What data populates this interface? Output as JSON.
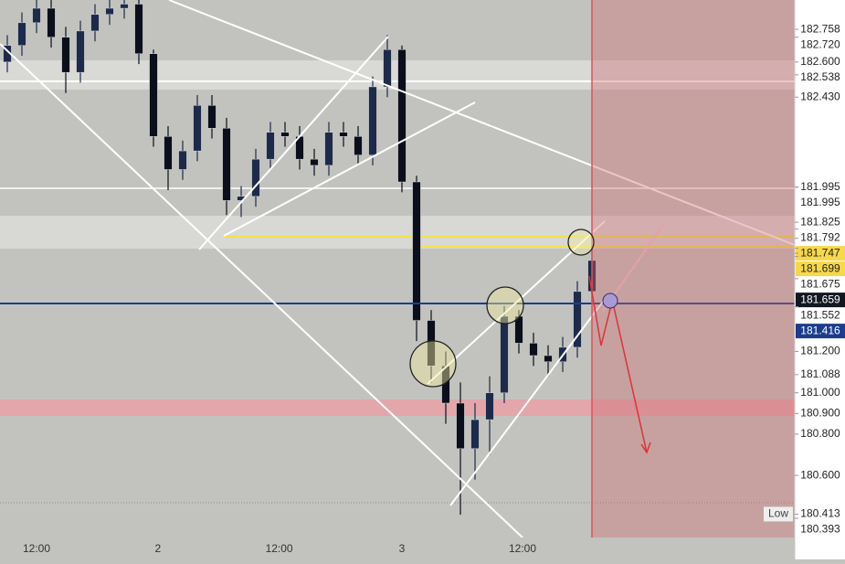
{
  "chart_data": {
    "type": "candlestick",
    "x": [
      0,
      1,
      2,
      3,
      4,
      5,
      6,
      7,
      8,
      9,
      10,
      11,
      12,
      13,
      14,
      15,
      16,
      17,
      18,
      19,
      20,
      21,
      22,
      23,
      24,
      25,
      26,
      27,
      28,
      29,
      30,
      31,
      32,
      33,
      34,
      35,
      36,
      37,
      38,
      39,
      40
    ],
    "open": [
      182.6,
      182.68,
      182.79,
      182.86,
      182.72,
      182.55,
      182.75,
      182.83,
      182.86,
      182.88,
      182.64,
      182.24,
      182.08,
      182.17,
      182.39,
      182.28,
      181.93,
      181.95,
      182.13,
      182.26,
      182.24,
      182.13,
      182.1,
      182.26,
      182.24,
      182.15,
      182.48,
      182.66,
      182.02,
      181.35,
      181.13,
      180.95,
      180.73,
      180.87,
      181.0,
      181.37,
      181.24,
      181.18,
      181.15,
      181.22,
      181.49
    ],
    "high": [
      182.73,
      182.84,
      182.91,
      182.91,
      182.77,
      182.8,
      182.88,
      182.91,
      182.93,
      182.9,
      182.66,
      182.29,
      182.22,
      182.44,
      182.44,
      182.33,
      182.0,
      182.18,
      182.31,
      182.31,
      182.29,
      182.18,
      182.31,
      182.31,
      182.29,
      182.53,
      182.73,
      182.68,
      182.05,
      181.4,
      181.2,
      181.05,
      180.95,
      181.08,
      181.42,
      181.4,
      181.29,
      181.23,
      181.27,
      181.54,
      181.7
    ],
    "low": [
      182.55,
      182.63,
      182.74,
      182.67,
      182.45,
      182.5,
      182.7,
      182.78,
      182.81,
      182.59,
      182.19,
      181.98,
      182.03,
      182.12,
      182.23,
      181.86,
      181.85,
      181.9,
      182.08,
      182.19,
      182.08,
      182.05,
      182.05,
      182.19,
      182.1,
      182.1,
      182.43,
      181.97,
      181.25,
      181.05,
      180.85,
      180.41,
      180.58,
      180.7,
      180.95,
      181.19,
      181.13,
      181.08,
      181.1,
      181.17,
      181.44
    ],
    "close": [
      182.68,
      182.79,
      182.86,
      182.72,
      182.55,
      182.75,
      182.83,
      182.86,
      182.88,
      182.64,
      182.24,
      182.08,
      182.17,
      182.39,
      182.28,
      181.93,
      181.95,
      182.13,
      182.26,
      182.24,
      182.13,
      182.1,
      182.26,
      182.24,
      182.15,
      182.48,
      182.66,
      182.02,
      181.35,
      181.13,
      180.95,
      180.73,
      180.87,
      181.0,
      181.37,
      181.24,
      181.18,
      181.15,
      181.22,
      181.49,
      181.64
    ],
    "up_color": "#1e2a4a",
    "down_color": "#0b0f1c",
    "xlim": [
      -0.5,
      53.875
    ],
    "xticks": [
      {
        "value": 2,
        "label": "12:00"
      },
      {
        "value": 10.3,
        "label": "2"
      },
      {
        "value": 18.6,
        "label": "12:00"
      },
      {
        "value": 27,
        "label": "3"
      },
      {
        "value": 35.25,
        "label": "12:00"
      }
    ],
    "ylim": [
      180.3,
      182.9
    ],
    "price_labels": [
      {
        "value": 182.758,
        "label": "182.758"
      },
      {
        "value": 182.72,
        "label": "182.720"
      },
      {
        "value": 182.6,
        "label": "182.600"
      },
      {
        "value": 182.538,
        "label": "182.538"
      },
      {
        "value": 182.43,
        "label": "182.430"
      },
      {
        "value": 181.995,
        "label": "181.995"
      },
      {
        "value": 181.995,
        "label": "181.995"
      },
      {
        "value": 181.825,
        "label": "181.825"
      },
      {
        "value": 181.792,
        "label": "181.792"
      },
      {
        "value": 181.747,
        "label": "181.747",
        "bg": "#f7d84a"
      },
      {
        "value": 181.699,
        "label": "181.699",
        "bg": "#f7d84a"
      },
      {
        "value": 181.675,
        "label": "181.675"
      },
      {
        "value": 181.659,
        "label": "181.659",
        "bg": "#131722",
        "fg": "#ffffff"
      },
      {
        "value": 181.552,
        "label": "181.552"
      },
      {
        "value": 181.416,
        "label": "181.416",
        "bg": "#1c3d8c",
        "fg": "#ffffff"
      },
      {
        "value": 181.2,
        "label": "181.200"
      },
      {
        "value": 181.088,
        "label": "181.088"
      },
      {
        "value": 181,
        "label": "181.000"
      },
      {
        "value": 180.9,
        "label": "180.900"
      },
      {
        "value": 180.8,
        "label": "180.800"
      },
      {
        "value": 180.6,
        "label": "180.600"
      },
      {
        "value": 180.413,
        "label": "180.413",
        "tag": "Low"
      },
      {
        "value": 180.393,
        "label": "180.393"
      }
    ]
  }
}
